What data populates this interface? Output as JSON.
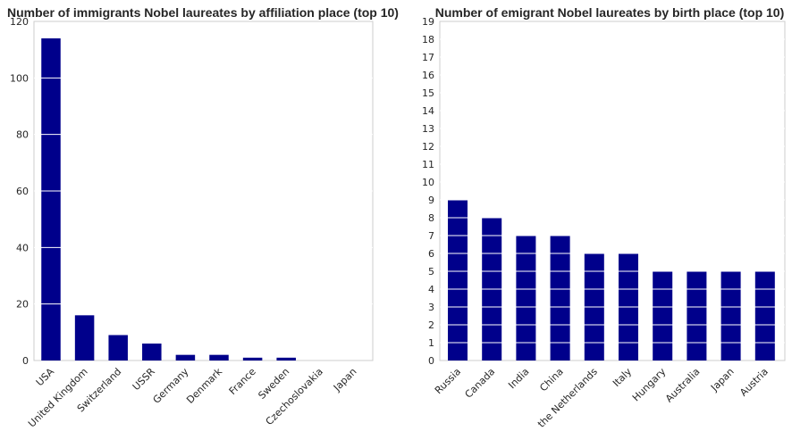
{
  "colors": {
    "bar": "#00008b",
    "frame": "#cccccc",
    "background": "#ffffff",
    "text": "#262626",
    "grid": "#ffffff"
  },
  "chart_data": [
    {
      "type": "bar",
      "title": "Number of immigrants Nobel laureates by affiliation place (top 10)",
      "xlabel": "",
      "ylabel": "",
      "categories": [
        "USA",
        "United Kingdom",
        "Switzerland",
        "USSR",
        "Germany",
        "Denmark",
        "France",
        "Sweden",
        "Czechoslovakia",
        "Japan"
      ],
      "values": [
        114,
        16,
        9,
        6,
        2,
        2,
        1,
        1,
        0,
        0
      ],
      "ylim": [
        0,
        120
      ],
      "yticks": [
        0,
        20,
        40,
        60,
        80,
        100,
        120
      ],
      "grid": true,
      "tick_rotation": -45
    },
    {
      "type": "bar",
      "title": "Number of emigrant Nobel laureates by birth place (top 10)",
      "xlabel": "",
      "ylabel": "",
      "categories": [
        "Russia",
        "Canada",
        "India",
        "China",
        "the Netherlands",
        "Italy",
        "Hungary",
        "Australia",
        "Japan",
        "Austria"
      ],
      "values": [
        9,
        8,
        7,
        7,
        6,
        6,
        5,
        5,
        5,
        5
      ],
      "ylim": [
        0,
        19
      ],
      "yticks": [
        0,
        1,
        2,
        3,
        4,
        5,
        6,
        7,
        8,
        9,
        10,
        11,
        12,
        13,
        14,
        15,
        16,
        17,
        18,
        19
      ],
      "grid": true,
      "tick_rotation": -45
    }
  ]
}
